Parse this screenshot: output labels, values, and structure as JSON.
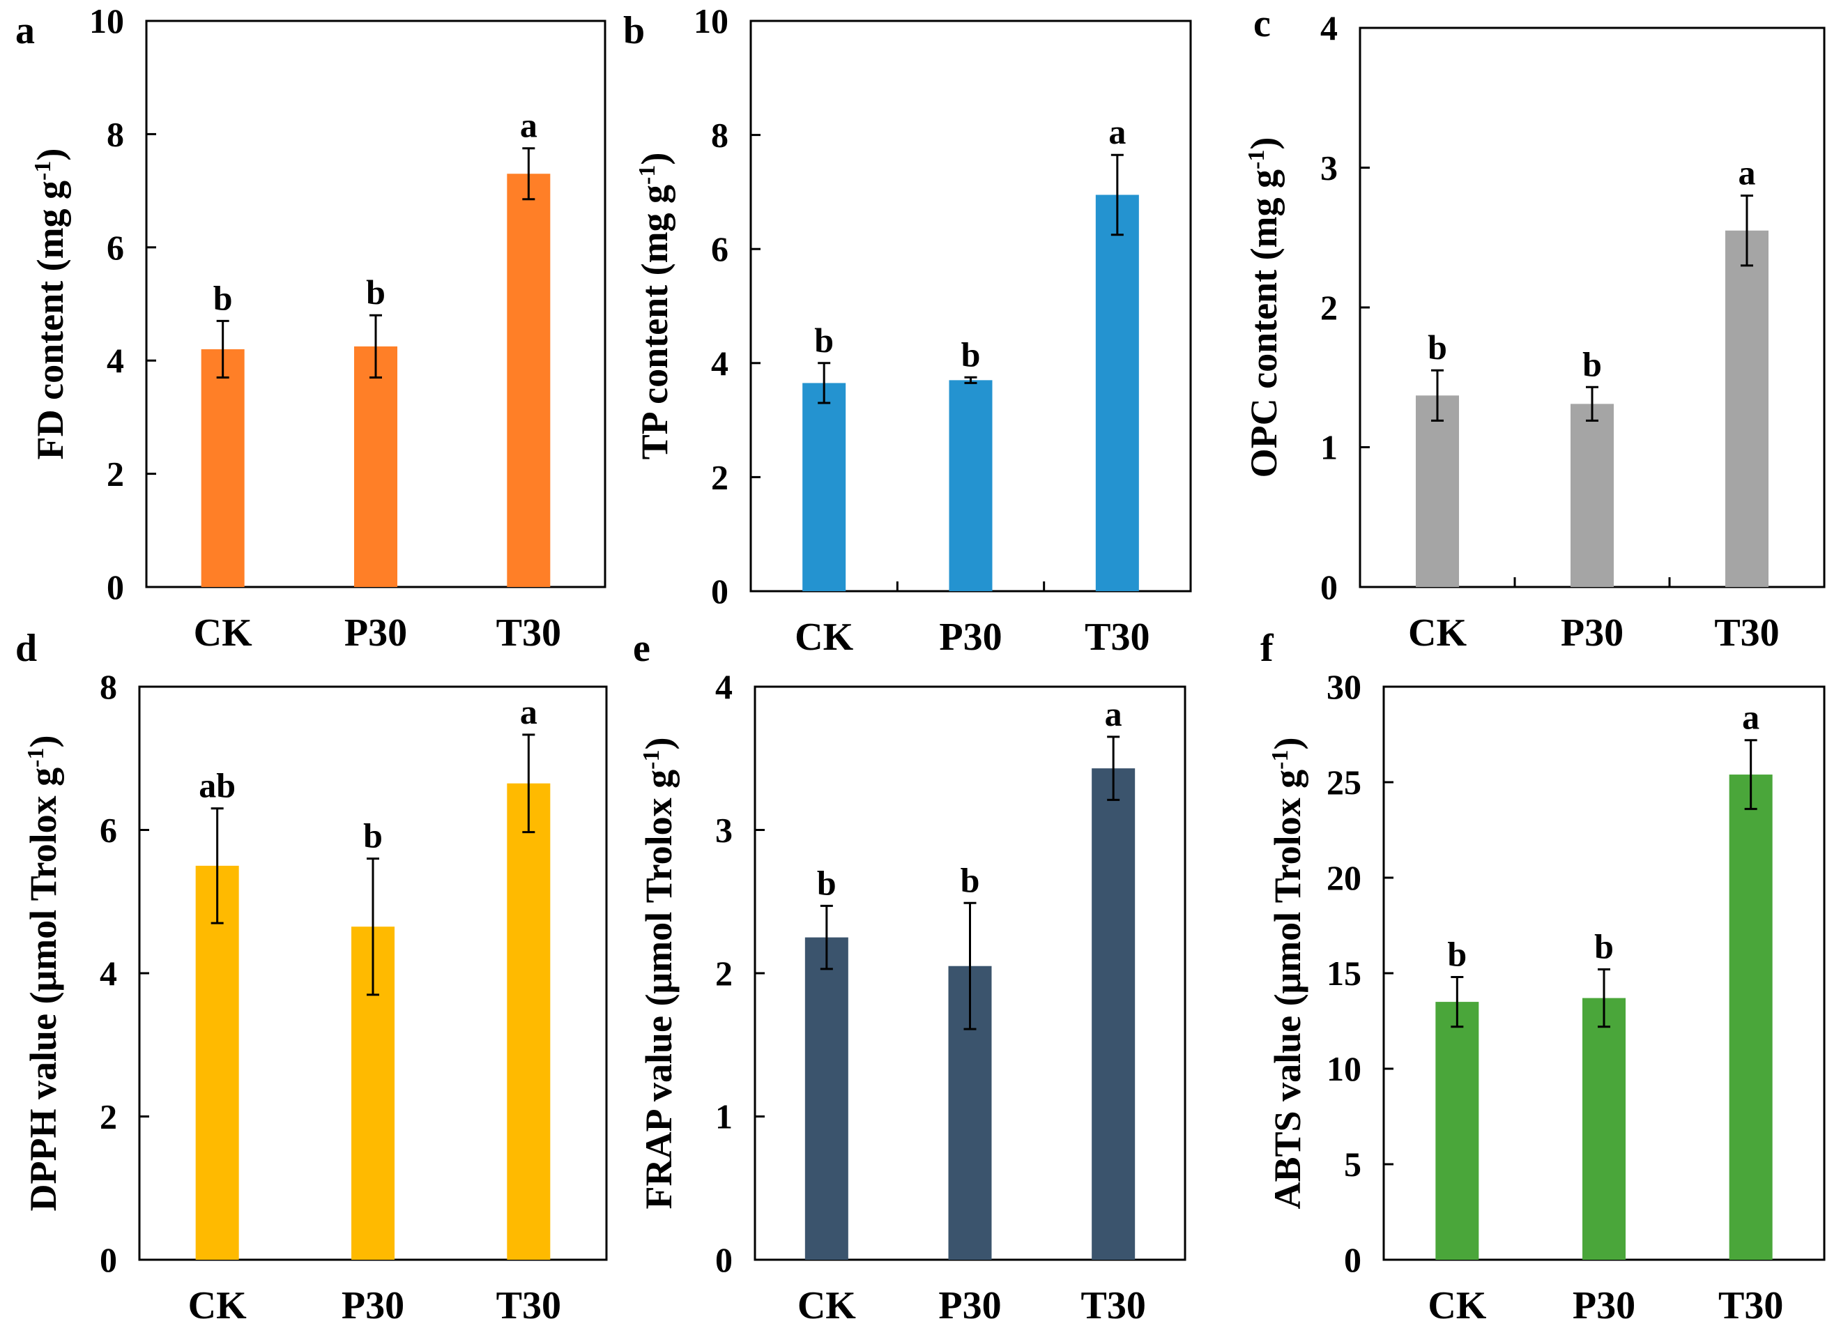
{
  "figure": {
    "categories": [
      "CK",
      "P30",
      "T30"
    ]
  },
  "chart_data": [
    {
      "panel": "a",
      "type": "bar",
      "ylabel_main": "FD content (mg g",
      "ylabel_sup": "-1",
      "ylabel_end": ")",
      "categories": [
        "CK",
        "P30",
        "T30"
      ],
      "values": [
        4.2,
        4.25,
        7.3
      ],
      "errors": [
        0.5,
        0.55,
        0.45
      ],
      "significance": [
        "b",
        "b",
        "a"
      ],
      "ylim": [
        0,
        10
      ],
      "yticks": [
        0,
        2,
        4,
        6,
        8,
        10
      ],
      "color": "#FF7F27",
      "x_ticks": false
    },
    {
      "panel": "b",
      "type": "bar",
      "ylabel_main": "TP content (mg g",
      "ylabel_sup": "-1",
      "ylabel_end": ")",
      "categories": [
        "CK",
        "P30",
        "T30"
      ],
      "values": [
        3.65,
        3.7,
        6.95
      ],
      "errors": [
        0.35,
        0.05,
        0.7
      ],
      "significance": [
        "b",
        "b",
        "a"
      ],
      "ylim": [
        0,
        10
      ],
      "yticks": [
        0,
        2,
        4,
        6,
        8,
        10
      ],
      "color": "#2493D0",
      "x_ticks": true
    },
    {
      "panel": "c",
      "type": "bar",
      "ylabel_main": "OPC content (mg g",
      "ylabel_sup": "-1",
      "ylabel_end": ")",
      "categories": [
        "CK",
        "P30",
        "T30"
      ],
      "values": [
        1.37,
        1.31,
        2.55
      ],
      "errors": [
        0.18,
        0.12,
        0.25
      ],
      "significance": [
        "b",
        "b",
        "a"
      ],
      "ylim": [
        0,
        4
      ],
      "yticks": [
        0,
        1,
        2,
        3,
        4
      ],
      "color": "#A5A5A5",
      "x_ticks": true
    },
    {
      "panel": "d",
      "type": "bar",
      "ylabel_main": "DPPH value (μmol Trolox g",
      "ylabel_sup": "-1",
      "ylabel_end": ")",
      "categories": [
        "CK",
        "P30",
        "T30"
      ],
      "values": [
        5.5,
        4.65,
        6.65
      ],
      "errors": [
        0.8,
        0.95,
        0.68
      ],
      "significance": [
        "ab",
        "b",
        "a"
      ],
      "ylim": [
        0,
        8
      ],
      "yticks": [
        0,
        2,
        4,
        6,
        8
      ],
      "color": "#FFBA00",
      "x_ticks": false
    },
    {
      "panel": "e",
      "type": "bar",
      "ylabel_main": "FRAP value (μmol Trolox g",
      "ylabel_sup": "-1",
      "ylabel_end": ")",
      "categories": [
        "CK",
        "P30",
        "T30"
      ],
      "values": [
        2.25,
        2.05,
        3.43
      ],
      "errors": [
        0.22,
        0.44,
        0.22
      ],
      "significance": [
        "b",
        "b",
        "a"
      ],
      "ylim": [
        0,
        4
      ],
      "yticks": [
        0,
        1,
        2,
        3,
        4
      ],
      "color": "#3B546D",
      "x_ticks": false
    },
    {
      "panel": "f",
      "type": "bar",
      "ylabel_main": "ABTS value (μmol Trolox g",
      "ylabel_sup": "-1",
      "ylabel_end": ")",
      "categories": [
        "CK",
        "P30",
        "T30"
      ],
      "values": [
        13.5,
        13.7,
        25.4
      ],
      "errors": [
        1.3,
        1.5,
        1.8
      ],
      "significance": [
        "b",
        "b",
        "a"
      ],
      "ylim": [
        0,
        30
      ],
      "yticks": [
        0,
        5,
        10,
        15,
        20,
        25,
        30
      ],
      "color": "#4AA63A",
      "x_ticks": false
    }
  ]
}
